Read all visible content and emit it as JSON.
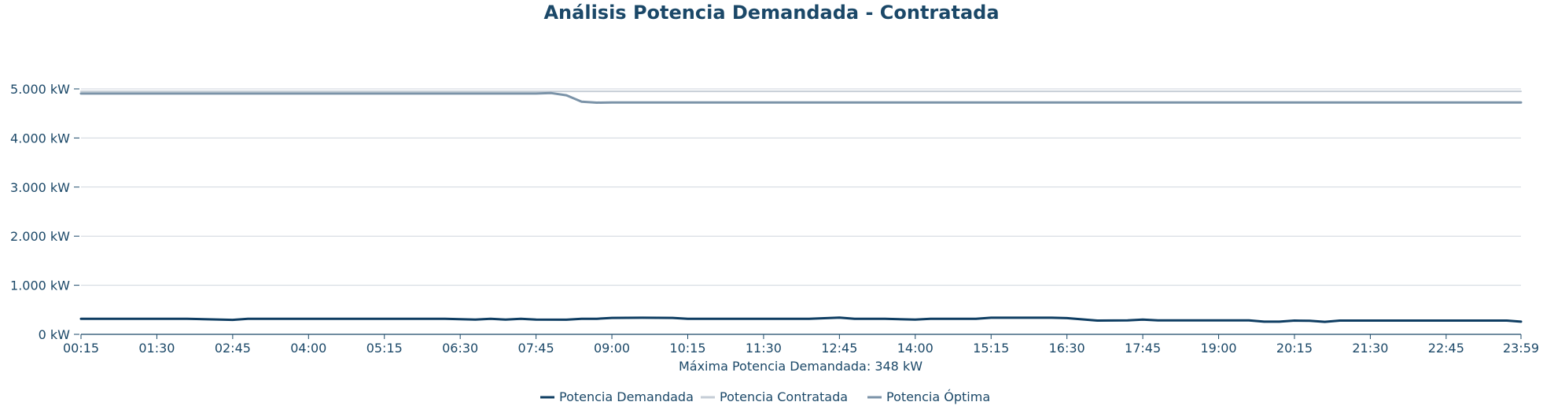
{
  "title": "Análisis Potencia Demandada - Contratada",
  "chart_data": {
    "type": "line",
    "title": "Análisis Potencia Demandada - Contratada",
    "xlabel": "Máxima Potencia Demandada: 348 kW",
    "ylabel": "",
    "ylim": [
      0,
      5000
    ],
    "y_ticks": [
      0,
      1000,
      2000,
      3000,
      4000,
      5000
    ],
    "y_tick_labels": [
      "0 kW",
      "1.000 kW",
      "2.000 kW",
      "3.000 kW",
      "4.000 kW",
      "5.000 kW"
    ],
    "x_tick_labels": [
      "00:15",
      "01:30",
      "02:45",
      "04:00",
      "05:15",
      "06:30",
      "07:45",
      "09:00",
      "10:15",
      "11:30",
      "12:45",
      "14:00",
      "15:15",
      "16:30",
      "17:45",
      "19:00",
      "20:15",
      "21:30",
      "22:45",
      "23:59"
    ],
    "grid": true,
    "legend_position": "bottom",
    "series": [
      {
        "name": "Potencia Demandada",
        "color": "#0e3d62",
        "points": [
          [
            "00:15",
            315
          ],
          [
            "02:00",
            315
          ],
          [
            "02:45",
            295
          ],
          [
            "03:00",
            315
          ],
          [
            "06:15",
            315
          ],
          [
            "06:45",
            300
          ],
          [
            "07:00",
            318
          ],
          [
            "07:15",
            300
          ],
          [
            "07:30",
            318
          ],
          [
            "07:45",
            300
          ],
          [
            "08:15",
            298
          ],
          [
            "08:30",
            315
          ],
          [
            "08:45",
            318
          ],
          [
            "09:00",
            335
          ],
          [
            "09:30",
            338
          ],
          [
            "10:00",
            335
          ],
          [
            "10:15",
            318
          ],
          [
            "12:15",
            318
          ],
          [
            "12:45",
            340
          ],
          [
            "13:00",
            318
          ],
          [
            "13:30",
            318
          ],
          [
            "14:00",
            300
          ],
          [
            "14:15",
            318
          ],
          [
            "15:00",
            318
          ],
          [
            "15:15",
            338
          ],
          [
            "16:15",
            338
          ],
          [
            "16:30",
            330
          ],
          [
            "17:00",
            280
          ],
          [
            "17:30",
            285
          ],
          [
            "17:45",
            300
          ],
          [
            "18:00",
            285
          ],
          [
            "19:30",
            285
          ],
          [
            "19:45",
            258
          ],
          [
            "20:00",
            258
          ],
          [
            "20:15",
            280
          ],
          [
            "20:30",
            275
          ],
          [
            "20:45",
            255
          ],
          [
            "21:00",
            280
          ],
          [
            "23:45",
            280
          ],
          [
            "23:59",
            258
          ]
        ]
      },
      {
        "name": "Potencia Contratada",
        "color": "#c5cdd6",
        "points": [
          [
            "00:15",
            4950
          ],
          [
            "23:59",
            4950
          ]
        ]
      },
      {
        "name": "Potencia Óptima",
        "color": "#7b93a8",
        "points": [
          [
            "00:15",
            4905
          ],
          [
            "07:45",
            4905
          ],
          [
            "08:00",
            4915
          ],
          [
            "08:15",
            4870
          ],
          [
            "08:30",
            4740
          ],
          [
            "08:45",
            4720
          ],
          [
            "09:00",
            4725
          ],
          [
            "23:59",
            4725
          ]
        ]
      }
    ]
  }
}
